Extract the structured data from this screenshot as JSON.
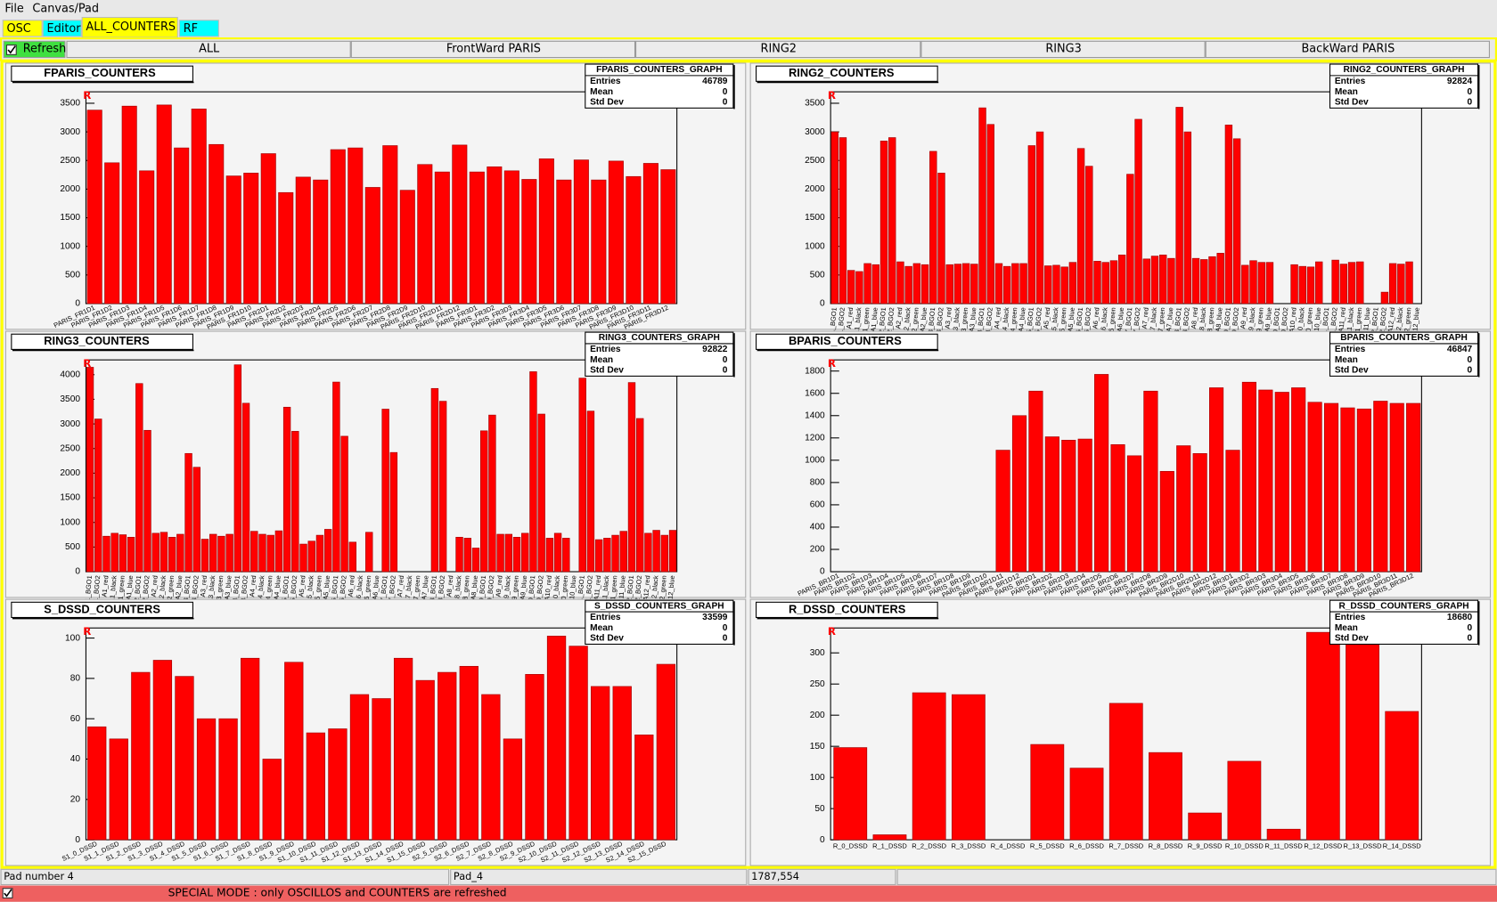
{
  "menu": [
    "File",
    "Canvas/Pad"
  ],
  "tabs": [
    "OSC",
    "Editor",
    "ALL_COUNTERS",
    "RF"
  ],
  "toolbar": {
    "checkbox": "Refresh",
    "buttons": [
      "ALL",
      "FrontWard PARIS",
      "RING2",
      "RING3",
      "BackWard PARIS"
    ]
  },
  "status": [
    "Pad number 4",
    "Pad_4",
    "1787,554"
  ],
  "footer": "SPECIAL MODE : only OSCILLOS and COUNTERS are refreshed",
  "chart_data": [
    {
      "type": "bar",
      "title": "FPARIS_COUNTERS",
      "corner_label": "R",
      "color": "#ff0000",
      "stats": {
        "title": "FPARIS_COUNTERS_GRAPH",
        "rows": [
          {
            "label": "Entries",
            "value": 46789
          },
          {
            "label": "Mean",
            "value": 0
          },
          {
            "label": "Std Dev",
            "value": 0
          }
        ]
      },
      "categories": [
        "PARIS_FR1D1",
        "PARIS_FR1D2",
        "PARIS_FR1D3",
        "PARIS_FR1D4",
        "PARIS_FR1D5",
        "PARIS_FR1D6",
        "PARIS_FR1D7",
        "PARIS_FR1D8",
        "PARIS_FR1D9",
        "PARIS_FR1D10",
        "PARIS_FR2D1",
        "PARIS_FR2D2",
        "PARIS_FR2D3",
        "PARIS_FR2D4",
        "PARIS_FR2D5",
        "PARIS_FR2D6",
        "PARIS_FR2D7",
        "PARIS_FR2D8",
        "PARIS_FR2D9",
        "PARIS_FR2D10",
        "PARIS_FR2D11",
        "PARIS_FR2D12",
        "PARIS_FR3D1",
        "PARIS_FR3D2",
        "PARIS_FR3D3",
        "PARIS_FR3D4",
        "PARIS_FR3D5",
        "PARIS_FR3D6",
        "PARIS_FR3D7",
        "PARIS_FR3D8",
        "PARIS_FR3D9",
        "PARIS_FR3D10",
        "PARIS_FR3D11",
        "PARIS_FR3D12"
      ],
      "values": [
        3380,
        2460,
        3450,
        2320,
        3470,
        2720,
        3400,
        2780,
        2230,
        2280,
        2620,
        1940,
        2210,
        2160,
        2690,
        2720,
        2030,
        2760,
        1980,
        2430,
        2300,
        2770,
        2300,
        2390,
        2320,
        2170,
        2530,
        2160,
        2510,
        2160,
        2490,
        2220,
        2450,
        2340
      ],
      "ylim": [
        0,
        3700
      ],
      "yticks": [
        0,
        500,
        1000,
        1500,
        2000,
        2500,
        3000,
        3500
      ]
    },
    {
      "type": "bar",
      "title": "RING2_COUNTERS",
      "corner_label": "R",
      "color": "#ff0000",
      "stats": {
        "title": "RING2_COUNTERS_GRAPH",
        "rows": [
          {
            "label": "Entries",
            "value": 92824
          },
          {
            "label": "Mean",
            "value": 0
          },
          {
            "label": "Std Dev",
            "value": 0
          }
        ]
      },
      "categories": [
        "1_BGO1",
        "1_BGO2",
        "A1_red",
        "A1_black",
        "A1_green",
        "A1_blue",
        "2_BGO1",
        "2_BGO2",
        "A2_red",
        "A2_black",
        "A2_green",
        "A2_blue",
        "3_BGO1",
        "3_BGO2",
        "A3_red",
        "A3_black",
        "A3_green",
        "A3_blue",
        "4_BGO1",
        "4_BGO2",
        "A4_red",
        "A4_black",
        "A4_green",
        "A4_blue",
        "5_BGO1",
        "5_BGO2",
        "A5_red",
        "A5_black",
        "A5_green",
        "A5_blue",
        "6_BGO1",
        "6_BGO2",
        "A6_red",
        "A6_black",
        "A6_green",
        "A6_blue",
        "7_BGO1",
        "7_BGO2",
        "A7_red",
        "A7_black",
        "A7_green",
        "A7_blue",
        "8_BGO1",
        "8_BGO2",
        "A8_red",
        "A8_black",
        "A8_green",
        "A8_blue",
        "9_BGO1",
        "9_BGO2",
        "A9_red",
        "A9_black",
        "A9_green",
        "A9_blue",
        "10_BGO1",
        "10_BGO2",
        "A10_red",
        "A10_black",
        "A10_green",
        "A10_blue",
        "11_BGO1",
        "11_BGO2",
        "A11_red",
        "A11_black",
        "A11_green",
        "A11_blue",
        "12_BGO1",
        "12_BGO2",
        "A12_red",
        "A12_black",
        "A12_green",
        "A12_blue"
      ],
      "values": [
        3000,
        2900,
        580,
        560,
        700,
        680,
        2840,
        2900,
        730,
        650,
        700,
        680,
        2660,
        2280,
        680,
        690,
        700,
        690,
        3420,
        3130,
        700,
        650,
        700,
        700,
        2760,
        3000,
        660,
        670,
        640,
        720,
        2710,
        2400,
        740,
        720,
        750,
        850,
        2260,
        3220,
        780,
        830,
        850,
        790,
        3430,
        3000,
        790,
        770,
        820,
        880,
        3120,
        2880,
        670,
        750,
        720,
        720,
        0,
        0,
        680,
        650,
        640,
        730,
        0,
        760,
        690,
        720,
        730,
        0,
        0,
        200,
        700,
        690,
        730,
        0
      ],
      "ylim": [
        0,
        3700
      ],
      "yticks": [
        0,
        500,
        1000,
        1500,
        2000,
        2500,
        3000,
        3500
      ]
    },
    {
      "type": "bar",
      "title": "RING3_COUNTERS",
      "corner_label": "R",
      "color": "#ff0000",
      "stats": {
        "title": "RING3_COUNTERS_GRAPH",
        "rows": [
          {
            "label": "Entries",
            "value": 92822
          },
          {
            "label": "Mean",
            "value": 0
          },
          {
            "label": "Std Dev",
            "value": 0
          }
        ]
      },
      "categories": [
        "1_BGO1",
        "1_BGO2",
        "A1_red",
        "A1_black",
        "A1_green",
        "A1_blue",
        "2_BGO1",
        "2_BGO2",
        "A2_red",
        "A2_black",
        "A2_green",
        "A2_blue",
        "3_BGO1",
        "3_BGO2",
        "A3_red",
        "A3_black",
        "A3_green",
        "A3_blue",
        "4_BGO1",
        "4_BGO2",
        "A4_red",
        "A4_black",
        "A4_green",
        "A4_blue",
        "5_BGO1",
        "5_BGO2",
        "A5_red",
        "A5_black",
        "A5_green",
        "A5_blue",
        "6_BGO1",
        "6_BGO2",
        "A6_red",
        "A6_black",
        "A6_green",
        "A6_blue",
        "7_BGO1",
        "7_BGO2",
        "A7_red",
        "A7_black",
        "A7_green",
        "A7_blue",
        "8_BGO1",
        "8_BGO2",
        "A8_red",
        "A8_black",
        "A8_green",
        "A8_blue",
        "9_BGO1",
        "9_BGO2",
        "A9_red",
        "A9_black",
        "A9_green",
        "A9_blue",
        "10_BGO1",
        "10_BGO2",
        "A10_red",
        "A10_black",
        "A10_green",
        "A10_blue",
        "11_BGO1",
        "11_BGO2",
        "A11_red",
        "A11_black",
        "A11_green",
        "A11_blue",
        "12_BGO1",
        "12_BGO2",
        "A12_red",
        "A12_black",
        "A12_green",
        "A12_blue"
      ],
      "values": [
        4150,
        3100,
        720,
        780,
        750,
        700,
        3820,
        2870,
        780,
        800,
        700,
        760,
        2400,
        2120,
        660,
        760,
        720,
        760,
        4200,
        3420,
        820,
        760,
        740,
        830,
        3340,
        2850,
        560,
        620,
        740,
        860,
        3850,
        2750,
        600,
        0,
        800,
        0,
        3300,
        2420,
        0,
        0,
        0,
        0,
        3720,
        3460,
        0,
        700,
        680,
        480,
        2860,
        3180,
        760,
        760,
        700,
        780,
        4060,
        3200,
        680,
        780,
        680,
        0,
        3930,
        3260,
        650,
        680,
        740,
        820,
        3840,
        3110,
        780,
        840,
        740,
        840
      ],
      "ylim": [
        0,
        4300
      ],
      "yticks": [
        0,
        500,
        1000,
        1500,
        2000,
        2500,
        3000,
        3500,
        4000
      ]
    },
    {
      "type": "bar",
      "title": "BPARIS_COUNTERS",
      "corner_label": "R",
      "color": "#ff0000",
      "stats": {
        "title": "BPARIS_COUNTERS_GRAPH",
        "rows": [
          {
            "label": "Entries",
            "value": 46847
          },
          {
            "label": "Mean",
            "value": 0
          },
          {
            "label": "Std Dev",
            "value": 0
          }
        ]
      },
      "categories": [
        "PARIS_BR1D1",
        "PARIS_BR1D2",
        "PARIS_BR1D3",
        "PARIS_BR1D4",
        "PARIS_BR1D5",
        "PARIS_BR1D6",
        "PARIS_BR1D7",
        "PARIS_BR1D8",
        "PARIS_BR1D9",
        "PARIS_BR1D10",
        "PARIS_BR1D11",
        "PARIS_BR1D12",
        "PARIS_BR2D1",
        "PARIS_BR2D2",
        "PARIS_BR2D3",
        "PARIS_BR2D4",
        "PARIS_BR2D5",
        "PARIS_BR2D6",
        "PARIS_BR2D7",
        "PARIS_BR2D8",
        "PARIS_BR2D9",
        "PARIS_BR2D10",
        "PARIS_BR2D11",
        "PARIS_BR2D12",
        "PARIS_BR3D1",
        "PARIS_BR3D2",
        "PARIS_BR3D3",
        "PARIS_BR3D4",
        "PARIS_BR3D5",
        "PARIS_BR3D6",
        "PARIS_BR3D7",
        "PARIS_BR3D8",
        "PARIS_BR3D9",
        "PARIS_BR3D10",
        "PARIS_BR3D11",
        "PARIS_BR3D12"
      ],
      "values": [
        0,
        0,
        0,
        0,
        0,
        0,
        0,
        0,
        0,
        0,
        1090,
        1400,
        1620,
        1210,
        1180,
        1190,
        1770,
        1140,
        1040,
        1620,
        900,
        1130,
        1060,
        1650,
        1090,
        1700,
        1630,
        1610,
        1650,
        1520,
        1510,
        1470,
        1460,
        1530,
        1510,
        1510
      ],
      "ylim": [
        0,
        1900
      ],
      "yticks": [
        0,
        200,
        400,
        600,
        800,
        1000,
        1200,
        1400,
        1600,
        1800
      ]
    },
    {
      "type": "bar",
      "title": "S_DSSD_COUNTERS",
      "corner_label": "R",
      "color": "#ff0000",
      "stats": {
        "title": "S_DSSD_COUNTERS_GRAPH",
        "rows": [
          {
            "label": "Entries",
            "value": 33599
          },
          {
            "label": "Mean",
            "value": 0
          },
          {
            "label": "Std Dev",
            "value": 0
          }
        ]
      },
      "categories": [
        "S1_0_DSSD",
        "S1_1_DSSD",
        "S1_2_DSSD",
        "S1_3_DSSD",
        "S1_4_DSSD",
        "S1_5_DSSD",
        "S1_6_DSSD",
        "S1_7_DSSD",
        "S1_8_DSSD",
        "S1_9_DSSD",
        "S1_10_DSSD",
        "S1_11_DSSD",
        "S1_12_DSSD",
        "S1_13_DSSD",
        "S1_14_DSSD",
        "S1_15_DSSD",
        "S2_5_DSSD",
        "S2_6_DSSD",
        "S2_7_DSSD",
        "S2_8_DSSD",
        "S2_9_DSSD",
        "S2_10_DSSD",
        "S2_11_DSSD",
        "S2_12_DSSD",
        "S2_13_DSSD",
        "S2_14_DSSD",
        "S2_15_DSSD"
      ],
      "values": [
        56,
        50,
        83,
        89,
        81,
        60,
        60,
        90,
        40,
        88,
        53,
        55,
        72,
        70,
        90,
        79,
        83,
        86,
        72,
        50,
        82,
        101,
        96,
        76,
        76,
        52,
        87
      ],
      "ylim": [
        0,
        105
      ],
      "yticks": [
        0,
        20,
        40,
        60,
        80,
        100
      ]
    },
    {
      "type": "bar",
      "title": "R_DSSD_COUNTERS",
      "corner_label": "R",
      "color": "#ff0000",
      "stats": {
        "title": "R_DSSD_COUNTERS_GRAPH",
        "rows": [
          {
            "label": "Entries",
            "value": 18680
          },
          {
            "label": "Mean",
            "value": 0
          },
          {
            "label": "Std Dev",
            "value": 0
          }
        ]
      },
      "categories": [
        "R_0_DSSD",
        "R_1_DSSD",
        "R_2_DSSD",
        "R_3_DSSD",
        "R_4_DSSD",
        "R_5_DSSD",
        "R_6_DSSD",
        "R_7_DSSD",
        "R_8_DSSD",
        "R_9_DSSD",
        "R_10_DSSD",
        "R_11_DSSD",
        "R_12_DSSD",
        "R_13_DSSD",
        "R_14_DSSD"
      ],
      "values": [
        148,
        8,
        236,
        233,
        0,
        153,
        115,
        219,
        140,
        43,
        126,
        17,
        333,
        333,
        206
      ],
      "ylim": [
        0,
        340
      ],
      "yticks": [
        0,
        50,
        100,
        150,
        200,
        250,
        300
      ]
    }
  ]
}
